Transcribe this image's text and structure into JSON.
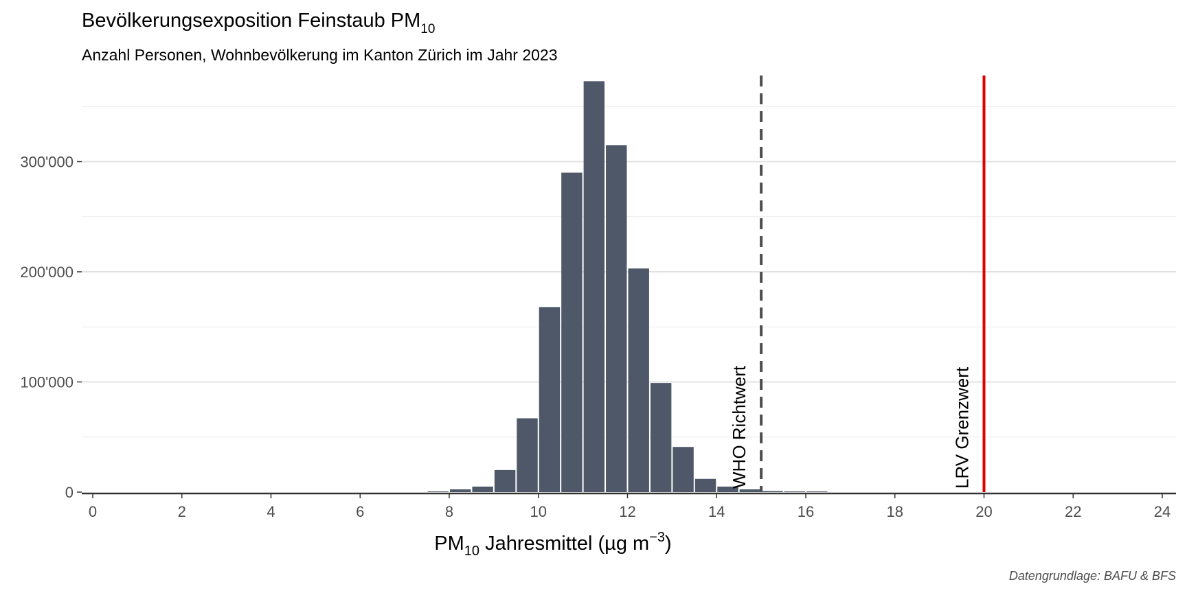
{
  "chart_data": {
    "type": "bar",
    "title": {
      "main": "Bevölkerungsexposition Feinstaub PM",
      "sub": "10"
    },
    "subtitle": "Anzahl Personen, Wohnbevölkerung im Kanton Zürich im Jahr 2023",
    "xlabel": {
      "pre": "PM",
      "sub": "10",
      "mid": " Jahresmittel (µg m",
      "sup": "−3",
      "post": ")"
    },
    "caption": "Datengrundlage: BAFU & BFS",
    "xlim": [
      0,
      24
    ],
    "ylim": [
      0,
      375000
    ],
    "x_ticks": [
      {
        "value": 0,
        "label": "0"
      },
      {
        "value": 2,
        "label": "2"
      },
      {
        "value": 4,
        "label": "4"
      },
      {
        "value": 6,
        "label": "6"
      },
      {
        "value": 8,
        "label": "8"
      },
      {
        "value": 10,
        "label": "10"
      },
      {
        "value": 12,
        "label": "12"
      },
      {
        "value": 14,
        "label": "14"
      },
      {
        "value": 16,
        "label": "16"
      },
      {
        "value": 18,
        "label": "18"
      },
      {
        "value": 20,
        "label": "20"
      },
      {
        "value": 22,
        "label": "22"
      },
      {
        "value": 24,
        "label": "24"
      }
    ],
    "y_ticks": [
      {
        "value": 0,
        "label": "0"
      },
      {
        "value": 100000,
        "label": "100'000"
      },
      {
        "value": 200000,
        "label": "200'000"
      },
      {
        "value": 300000,
        "label": "300'000"
      }
    ],
    "y_minor_gridlines": [
      50000,
      150000,
      250000,
      350000
    ],
    "grid": true,
    "bar_color": "#4f5869",
    "bin_width": 0.5,
    "bins": [
      {
        "x": 7.75,
        "value": 500
      },
      {
        "x": 8.25,
        "value": 2500
      },
      {
        "x": 8.75,
        "value": 5000
      },
      {
        "x": 9.25,
        "value": 20000
      },
      {
        "x": 9.75,
        "value": 67000
      },
      {
        "x": 10.25,
        "value": 168000
      },
      {
        "x": 10.75,
        "value": 290000
      },
      {
        "x": 11.25,
        "value": 373000
      },
      {
        "x": 11.75,
        "value": 315000
      },
      {
        "x": 12.25,
        "value": 203000
      },
      {
        "x": 12.75,
        "value": 99000
      },
      {
        "x": 13.25,
        "value": 41000
      },
      {
        "x": 13.75,
        "value": 12000
      },
      {
        "x": 14.25,
        "value": 5000
      },
      {
        "x": 14.75,
        "value": 2500
      },
      {
        "x": 15.25,
        "value": 1000
      },
      {
        "x": 15.75,
        "value": 500
      },
      {
        "x": 16.25,
        "value": 500
      }
    ],
    "reference_lines": [
      {
        "x": 15,
        "label": "WHO Richtwert",
        "color": "#4d4d4d",
        "style": "dashed"
      },
      {
        "x": 20,
        "label": "LRV Grenzwert",
        "color": "#dd0000",
        "style": "solid"
      }
    ]
  }
}
